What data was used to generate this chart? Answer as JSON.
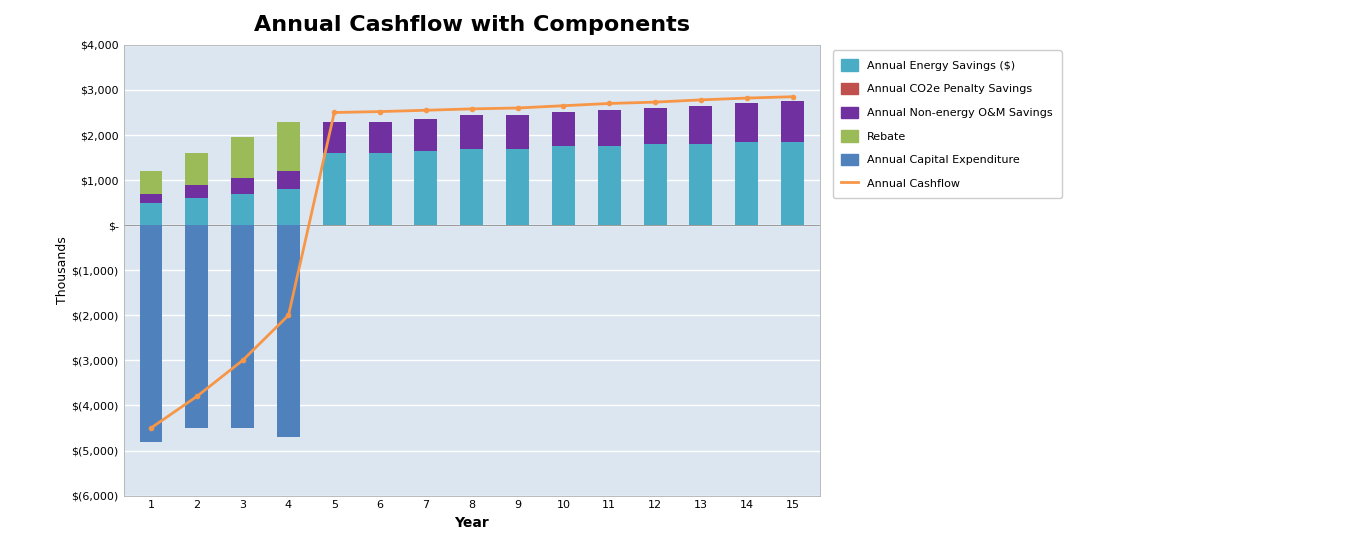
{
  "title": "Annual Cashflow with Components",
  "xlabel": "Year",
  "ylabel": "Thousands",
  "years": [
    1,
    2,
    3,
    4,
    5,
    6,
    7,
    8,
    9,
    10,
    11,
    12,
    13,
    14,
    15
  ],
  "energy_savings": [
    500,
    600,
    700,
    800,
    1600,
    1600,
    1650,
    1700,
    1700,
    1750,
    1750,
    1800,
    1800,
    1850,
    1850
  ],
  "co2_savings": [
    0,
    0,
    0,
    0,
    0,
    0,
    0,
    0,
    0,
    0,
    0,
    0,
    0,
    0,
    0
  ],
  "om_savings": [
    200,
    300,
    350,
    400,
    700,
    700,
    700,
    750,
    750,
    750,
    800,
    800,
    850,
    850,
    900
  ],
  "rebate": [
    500,
    700,
    900,
    1100,
    0,
    0,
    0,
    0,
    0,
    0,
    0,
    0,
    0,
    0,
    0
  ],
  "capex": [
    -4800,
    -4500,
    -4500,
    -4700,
    0,
    0,
    0,
    0,
    0,
    0,
    0,
    0,
    0,
    0,
    0
  ],
  "cashflow": [
    -4500,
    -3800,
    -3000,
    -2000,
    2500,
    2520,
    2550,
    2580,
    2600,
    2650,
    2700,
    2730,
    2780,
    2820,
    2850
  ],
  "color_energy": "#4bacc6",
  "color_co2": "#c0504d",
  "color_om": "#7030a0",
  "color_rebate": "#9bbb59",
  "color_capex": "#4f81bd",
  "color_cashflow": "#f79646",
  "legend_labels": [
    "Annual Energy Savings ($)",
    "Annual CO2e Penalty Savings",
    "Annual Non-energy O&M Savings",
    "Rebate",
    "Annual Capital Expenditure",
    "Annual Cashflow"
  ],
  "ylim": [
    -6000,
    4000
  ],
  "yticks": [
    4000,
    3000,
    2000,
    1000,
    0,
    -1000,
    -2000,
    -3000,
    -4000,
    -5000,
    -6000
  ],
  "background_color": "#ffffff",
  "plot_bg": "#dce6f1",
  "grid_color": "#ffffff",
  "title_fontsize": 16,
  "axis_fontsize": 9,
  "tick_fontsize": 8
}
